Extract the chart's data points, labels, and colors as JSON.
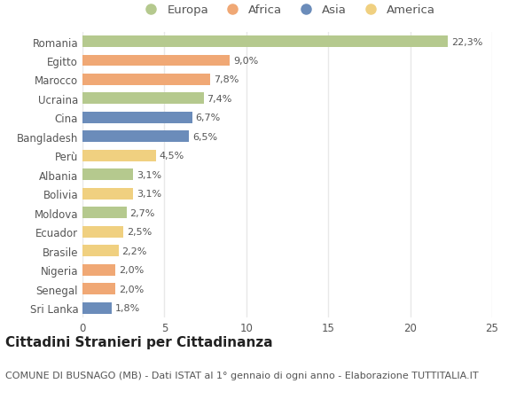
{
  "countries": [
    "Romania",
    "Egitto",
    "Marocco",
    "Ucraina",
    "Cina",
    "Bangladesh",
    "Perù",
    "Albania",
    "Bolivia",
    "Moldova",
    "Ecuador",
    "Brasile",
    "Nigeria",
    "Senegal",
    "Sri Lanka"
  ],
  "values": [
    22.3,
    9.0,
    7.8,
    7.4,
    6.7,
    6.5,
    4.5,
    3.1,
    3.1,
    2.7,
    2.5,
    2.2,
    2.0,
    2.0,
    1.8
  ],
  "labels": [
    "22,3%",
    "9,0%",
    "7,8%",
    "7,4%",
    "6,7%",
    "6,5%",
    "4,5%",
    "3,1%",
    "3,1%",
    "2,7%",
    "2,5%",
    "2,2%",
    "2,0%",
    "2,0%",
    "1,8%"
  ],
  "continents": [
    "Europa",
    "Africa",
    "Africa",
    "Europa",
    "Asia",
    "Asia",
    "America",
    "Europa",
    "America",
    "Europa",
    "America",
    "America",
    "Africa",
    "Africa",
    "Asia"
  ],
  "colors": {
    "Europa": "#b5c98e",
    "Africa": "#f0a875",
    "Asia": "#6b8cba",
    "America": "#f0d080"
  },
  "legend_order": [
    "Europa",
    "Africa",
    "Asia",
    "America"
  ],
  "xlim": [
    0,
    25
  ],
  "xticks": [
    0,
    5,
    10,
    15,
    20,
    25
  ],
  "title": "Cittadini Stranieri per Cittadinanza",
  "subtitle": "COMUNE DI BUSNAGO (MB) - Dati ISTAT al 1° gennaio di ogni anno - Elaborazione TUTTITALIA.IT",
  "background_color": "#ffffff",
  "grid_color": "#e8e8e8",
  "bar_height": 0.6,
  "title_fontsize": 11,
  "subtitle_fontsize": 8,
  "label_fontsize": 8,
  "tick_fontsize": 8.5,
  "legend_fontsize": 9.5
}
